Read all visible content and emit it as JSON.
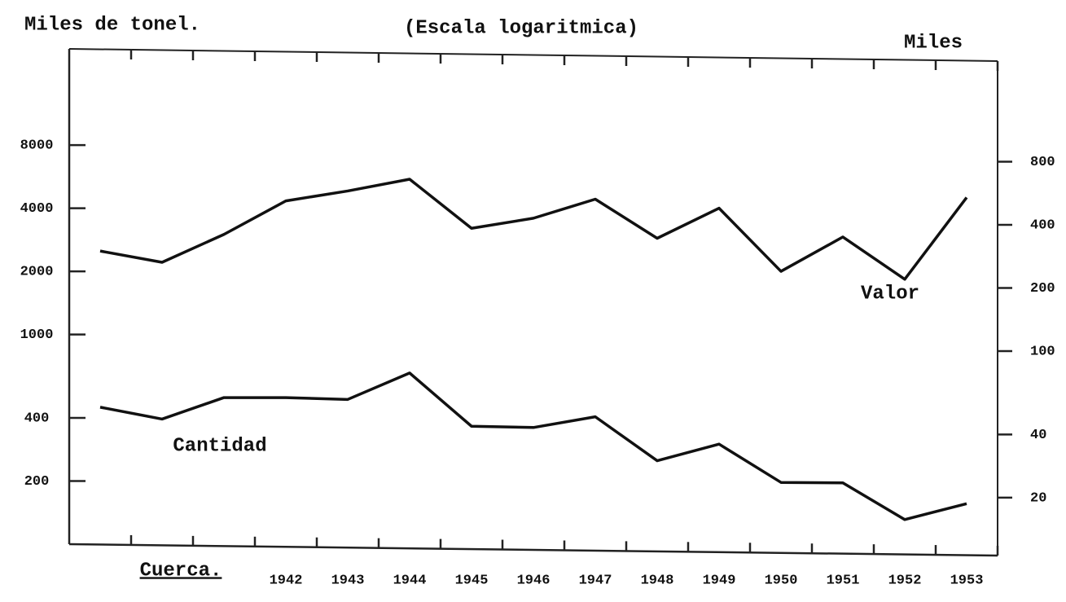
{
  "chart_data": {
    "type": "line",
    "title": "(Escala logaritmica)",
    "y_label": "Miles de tonel.",
    "y2_label": "Miles",
    "source": "Cuerca.",
    "annotations": [
      "Valor",
      "Cantidad"
    ],
    "categories": [
      null,
      null,
      null,
      "1942",
      "1943",
      "1944",
      "1945",
      "1946",
      "1947",
      "1948",
      "1949",
      "1950",
      "1951",
      "1952",
      "1953"
    ],
    "series": [
      {
        "name": "Valor",
        "color": "#111111",
        "axis": "y2",
        "values": [
          300,
          265,
          360,
          520,
          580,
          660,
          385,
          430,
          530,
          345,
          480,
          240,
          350,
          220,
          540
        ]
      },
      {
        "name": "Cantidad",
        "color": "#111111",
        "values": [
          450,
          395,
          500,
          500,
          490,
          655,
          365,
          360,
          405,
          250,
          300,
          197,
          196,
          131,
          156
        ]
      }
    ],
    "log": true,
    "ylim": [
      100,
      22000
    ],
    "yticks": [
      200,
      400,
      1000,
      2000,
      4000,
      8000
    ],
    "y2lim": [
      12,
      2640
    ],
    "y2ticks": [
      20,
      40,
      100,
      200,
      400,
      800
    ]
  }
}
